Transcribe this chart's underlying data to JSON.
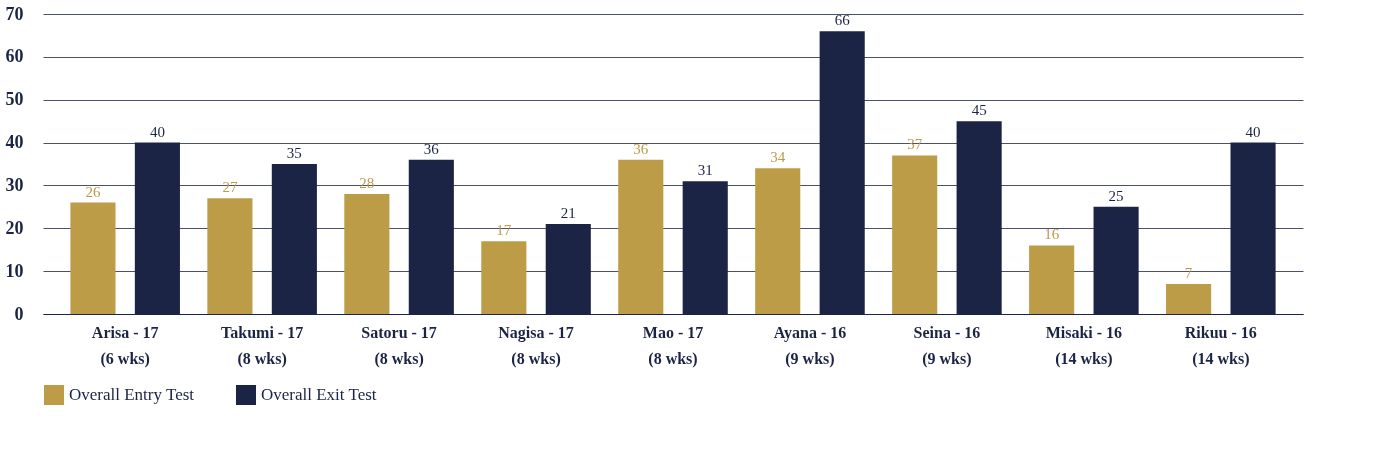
{
  "chart_data": {
    "type": "bar",
    "categories": [
      "Arisa - 17\n(6 wks)",
      "Takumi - 17\n(8 wks)",
      "Satoru - 17\n(8 wks)",
      "Nagisa - 17\n(8 wks)",
      "Mao - 17\n(8 wks)",
      "Ayana - 16\n(9 wks)",
      "Seina - 16\n(9 wks)",
      "Misaki - 16\n(14 wks)",
      "Rikuu - 16\n(14 wks)"
    ],
    "series": [
      {
        "name": "Overall Entry Test",
        "color": "#bd9c48",
        "values": [
          26,
          27,
          28,
          17,
          36,
          34,
          37,
          16,
          7
        ]
      },
      {
        "name": "Overall Exit Test",
        "color": "#1c2445",
        "values": [
          40,
          35,
          36,
          21,
          31,
          66,
          45,
          25,
          40
        ]
      }
    ],
    "ylim": [
      0,
      70
    ],
    "yticks": [
      0,
      10,
      20,
      30,
      40,
      50,
      60,
      70
    ],
    "grid": "y",
    "legend": "bottom left",
    "data_labels": true
  }
}
